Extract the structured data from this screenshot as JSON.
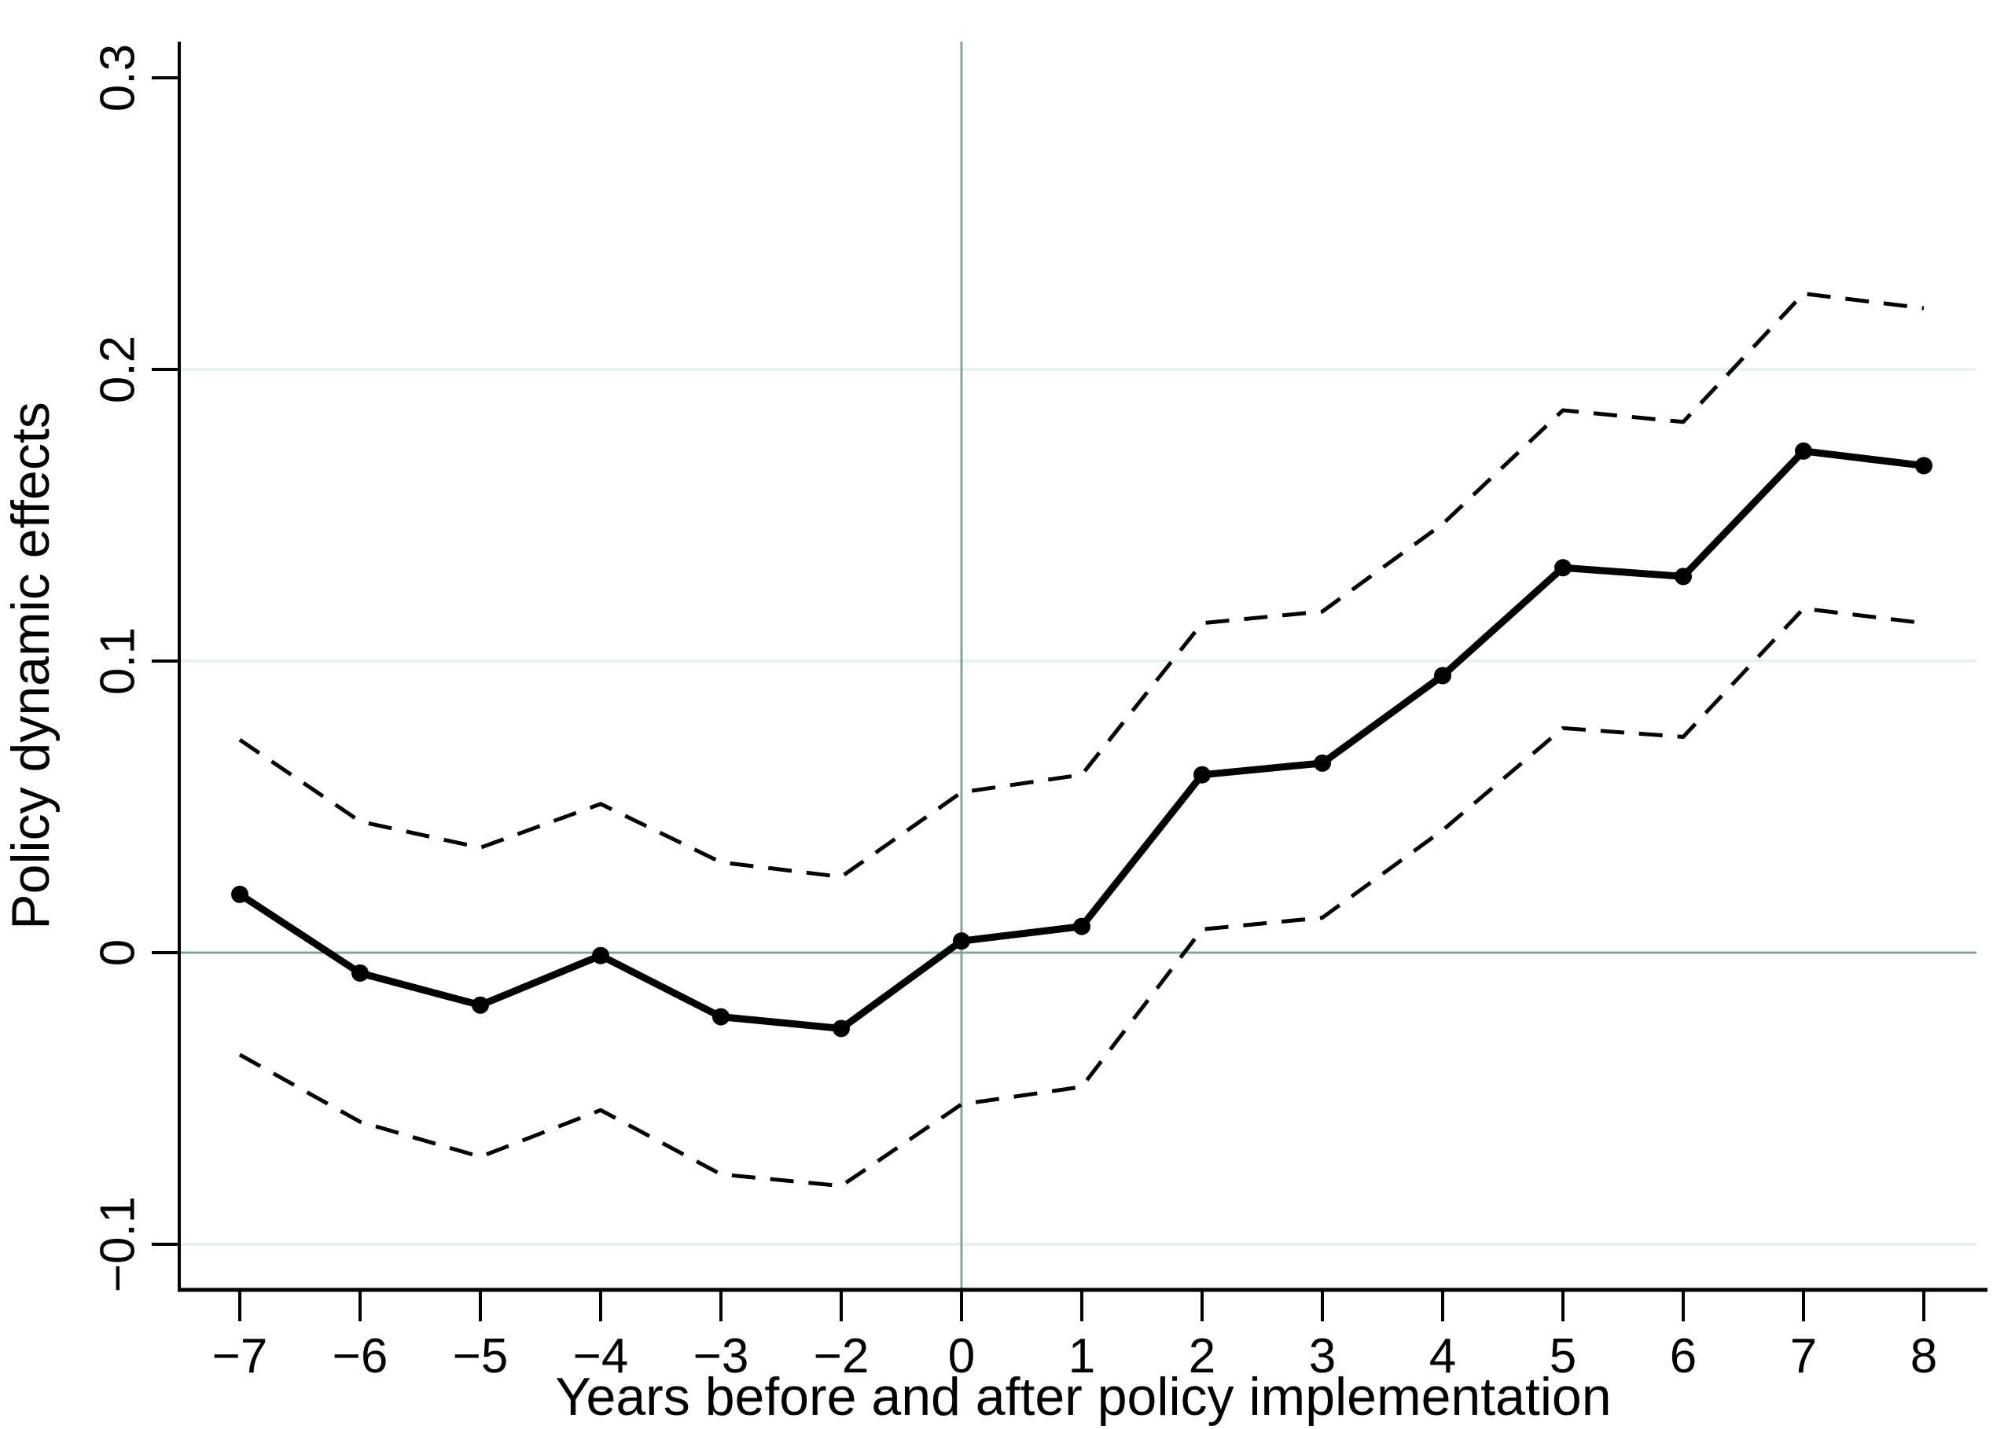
{
  "figure": {
    "background": "#ffffff"
  },
  "chart_data": {
    "type": "line",
    "title": "",
    "xlabel": "Years before and after policy implementation",
    "ylabel": "Policy dynamic effects",
    "categories": [
      -7,
      -6,
      -5,
      -4,
      -3,
      -2,
      0,
      1,
      2,
      3,
      4,
      5,
      6,
      7,
      8
    ],
    "x_tick_labels": [
      "−7",
      "−6",
      "−5",
      "−4",
      "−3",
      "−2",
      "0",
      "1",
      "2",
      "3",
      "4",
      "5",
      "6",
      "7",
      "8"
    ],
    "y_tick_values": [
      0.3,
      0.2,
      0.1,
      0,
      -0.1
    ],
    "y_tick_labels": [
      "0.3",
      "0.2",
      "0.1",
      "0",
      "−0.1"
    ],
    "ylim": [
      -0.115,
      0.312
    ],
    "grid_values": [
      0.2,
      0.1,
      -0.1
    ],
    "reference_lines": {
      "horizontal_at_y": 0,
      "vertical_at_x": 0
    },
    "legend": "none",
    "series": [
      {
        "name": "point-estimate",
        "style": "solid-markers",
        "values": [
          0.02,
          -0.007,
          -0.018,
          -0.001,
          -0.022,
          -0.026,
          0.004,
          0.009,
          0.061,
          0.065,
          0.095,
          0.132,
          0.129,
          0.172,
          0.167
        ]
      },
      {
        "name": "ci-upper",
        "style": "dashed",
        "values": [
          0.073,
          0.045,
          0.036,
          0.051,
          0.031,
          0.026,
          0.055,
          0.061,
          0.113,
          0.117,
          0.147,
          0.186,
          0.182,
          0.226,
          0.221
        ]
      },
      {
        "name": "ci-lower",
        "style": "dashed",
        "values": [
          -0.035,
          -0.058,
          -0.07,
          -0.054,
          -0.076,
          -0.08,
          -0.052,
          -0.046,
          0.008,
          0.012,
          0.042,
          0.077,
          0.074,
          0.118,
          0.113
        ]
      }
    ],
    "colors": {
      "series": "#000000",
      "reference_line": "#84a59b",
      "gridline": "#e3efeb",
      "axis": "#000000"
    }
  }
}
